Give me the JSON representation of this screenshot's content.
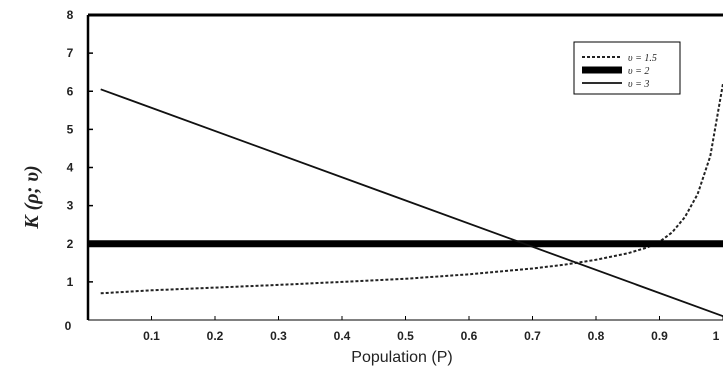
{
  "chart_data": {
    "type": "line",
    "title": "",
    "xlabel": "Population (P)",
    "ylabel": "K (ρ; υ)",
    "xlim": [
      0,
      1
    ],
    "ylim": [
      0,
      8
    ],
    "x_ticks": [
      "0",
      "0.1",
      "0.2",
      "0.3",
      "0.4",
      "0.5",
      "0.6",
      "0.7",
      "0.8",
      "0.9",
      "1"
    ],
    "y_ticks": [
      "0",
      "1",
      "2",
      "3",
      "4",
      "5",
      "6",
      "7",
      "8"
    ],
    "legend_position": "top-right",
    "series": [
      {
        "name": "υ = 1.5",
        "style": "dashed",
        "color": "#222222",
        "x": [
          0.02,
          0.1,
          0.2,
          0.3,
          0.4,
          0.5,
          0.6,
          0.7,
          0.75,
          0.8,
          0.85,
          0.88,
          0.9,
          0.92,
          0.94,
          0.96,
          0.98,
          1.0
        ],
        "y": [
          0.7,
          0.78,
          0.85,
          0.92,
          1.0,
          1.08,
          1.2,
          1.35,
          1.45,
          1.58,
          1.75,
          1.9,
          2.05,
          2.3,
          2.7,
          3.3,
          4.3,
          6.2
        ]
      },
      {
        "name": "υ = 2",
        "style": "thick",
        "color": "#000000",
        "x": [
          0.0,
          1.0
        ],
        "y": [
          2.0,
          2.0
        ]
      },
      {
        "name": "υ = 3",
        "style": "solid",
        "color": "#111111",
        "x": [
          0.02,
          1.0
        ],
        "y": [
          6.05,
          0.1
        ]
      }
    ]
  }
}
